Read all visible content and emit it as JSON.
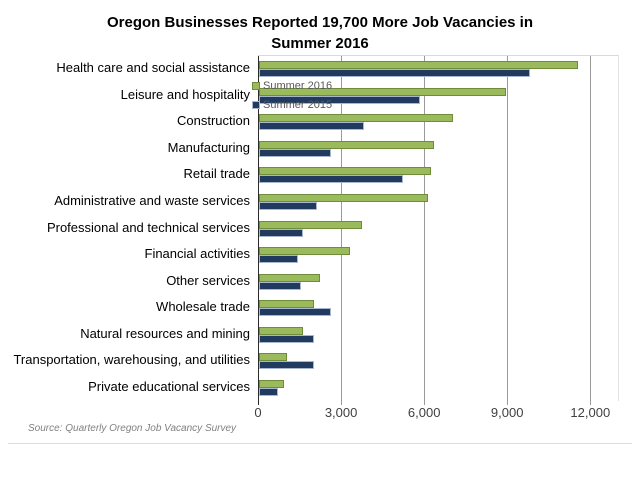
{
  "title": "Oregon Businesses Reported 19,700 More Job Vacancies in Summer 2016",
  "source_note": "Source: Quarterly Oregon Job Vacancy Survey",
  "colors": {
    "summer_2016": "#9bba5b",
    "summer_2015": "#203a60",
    "gridline": "#9a9a9a",
    "axis": "#2b2b2b",
    "legend_text": "#595959"
  },
  "chart_data": {
    "type": "bar",
    "orientation": "horizontal",
    "title": "Oregon Businesses Reported 19,700 More Job Vacancies in Summer 2016",
    "xlabel": "",
    "ylabel": "",
    "xlim": [
      0,
      13000
    ],
    "xticks": [
      0,
      3000,
      6000,
      9000,
      12000
    ],
    "xtick_labels": [
      "0",
      "3,000",
      "6,000",
      "9,000",
      "12,000"
    ],
    "grid": "vertical",
    "legend_position": "middle-right",
    "categories": [
      "Health care and social assistance",
      "Leisure and hospitality",
      "Construction",
      "Manufacturing",
      "Retail trade",
      "Administrative and waste services",
      "Professional and technical services",
      "Financial activities",
      "Other services",
      "Wholesale trade",
      "Natural resources and mining",
      "Transportation, warehousing, and utilities",
      "Private educational services"
    ],
    "series": [
      {
        "name": "Summer 2016",
        "color": "#9bba5b",
        "values": [
          11500,
          8900,
          7000,
          6300,
          6200,
          6100,
          3700,
          3300,
          2200,
          2000,
          1600,
          1000,
          900
        ]
      },
      {
        "name": "Summer 2015",
        "color": "#203a60",
        "values": [
          9800,
          5800,
          3800,
          2600,
          5200,
          2100,
          1600,
          1400,
          1500,
          2600,
          2000,
          2000,
          700
        ]
      }
    ]
  }
}
